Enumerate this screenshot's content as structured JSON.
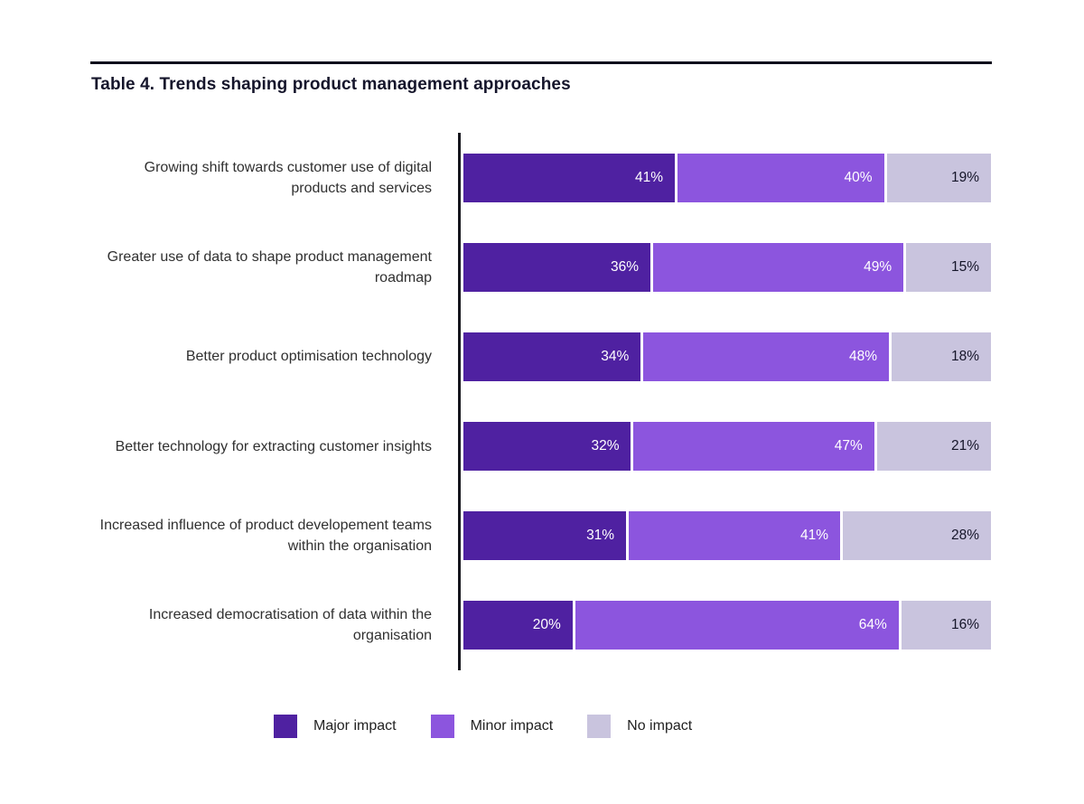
{
  "page": {
    "title": "Table 4. Trends shaping product management approaches"
  },
  "chart_data": {
    "type": "bar",
    "orientation": "horizontal",
    "stacked": true,
    "title": "Table 4. Trends shaping product management approaches",
    "categories": [
      "Growing shift towards customer use of digital products and services",
      "Greater use of data to shape product management roadmap",
      "Better product optimisation technology",
      "Better technology for extracting customer insights",
      "Increased influence of product developement teams within the organisation",
      "Increased democratisation of data within the organisation"
    ],
    "series": [
      {
        "name": "Major impact",
        "color": "#4f21a1",
        "label_color": "#ffffff",
        "values": [
          41,
          36,
          34,
          32,
          31,
          20
        ]
      },
      {
        "name": "Minor impact",
        "color": "#8c55de",
        "label_color": "#ffffff",
        "values": [
          40,
          49,
          48,
          47,
          41,
          64
        ]
      },
      {
        "name": "No impact",
        "color": "#c9c4de",
        "label_color": "#16162a",
        "values": [
          19,
          15,
          18,
          21,
          28,
          16
        ]
      }
    ],
    "value_suffix": "%",
    "xlim": [
      0,
      100
    ],
    "grid": false,
    "legend_position": "bottom",
    "axis_color": "#16161d"
  }
}
